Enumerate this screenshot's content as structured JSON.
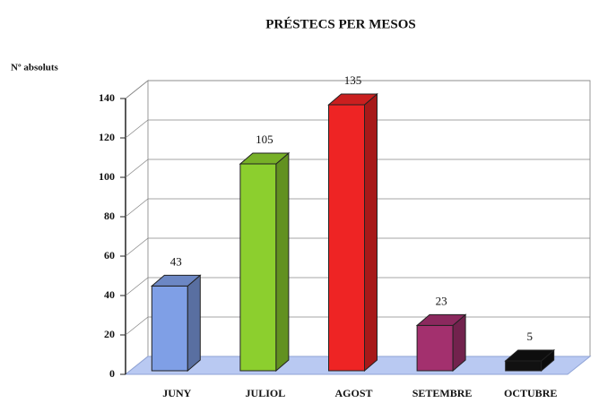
{
  "chart_data": {
    "type": "bar3d",
    "title": "PRÉSTECS PER MESOS",
    "y_label": "Nº absoluts",
    "categories": [
      "JUNY",
      "JULIOL",
      "AGOST",
      "SETEMBRE",
      "OCTUBRE"
    ],
    "values": [
      43,
      105,
      135,
      23,
      5
    ],
    "colors": [
      "#7f9fe6",
      "#8ccf2e",
      "#ee2424",
      "#a3306e",
      "#111111"
    ],
    "ylim": [
      0,
      140
    ],
    "yticks": [
      0,
      20,
      40,
      60,
      80,
      100,
      120,
      140
    ],
    "grid": true
  }
}
